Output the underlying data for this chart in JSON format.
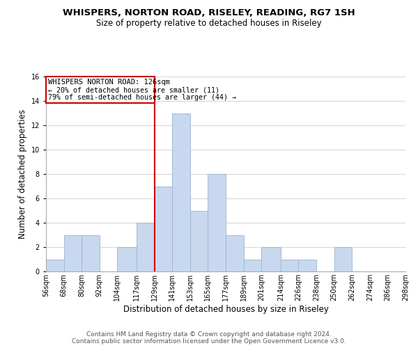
{
  "title": "WHISPERS, NORTON ROAD, RISELEY, READING, RG7 1SH",
  "subtitle": "Size of property relative to detached houses in Riseley",
  "xlabel": "Distribution of detached houses by size in Riseley",
  "ylabel": "Number of detached properties",
  "bar_edges": [
    56,
    68,
    80,
    92,
    104,
    117,
    129,
    141,
    153,
    165,
    177,
    189,
    201,
    214,
    226,
    238,
    250,
    262,
    274,
    286,
    298
  ],
  "bar_heights": [
    1,
    3,
    3,
    0,
    2,
    4,
    7,
    13,
    5,
    8,
    3,
    1,
    2,
    1,
    1,
    0,
    2,
    0,
    0,
    0
  ],
  "bar_color": "#c8d8ee",
  "bar_edgecolor": "#9ab4d4",
  "vline_x": 129,
  "vline_color": "#cc0000",
  "ylim": [
    0,
    16
  ],
  "yticks": [
    0,
    2,
    4,
    6,
    8,
    10,
    12,
    14,
    16
  ],
  "annotation_title": "WHISPERS NORTON ROAD: 126sqm",
  "annotation_line1": "← 20% of detached houses are smaller (11)",
  "annotation_line2": "79% of semi-detached houses are larger (44) →",
  "tick_labels": [
    "56sqm",
    "68sqm",
    "80sqm",
    "92sqm",
    "104sqm",
    "117sqm",
    "129sqm",
    "141sqm",
    "153sqm",
    "165sqm",
    "177sqm",
    "189sqm",
    "201sqm",
    "214sqm",
    "226sqm",
    "238sqm",
    "250sqm",
    "262sqm",
    "274sqm",
    "286sqm",
    "298sqm"
  ],
  "footnote1": "Contains HM Land Registry data © Crown copyright and database right 2024.",
  "footnote2": "Contains public sector information licensed under the Open Government Licence v3.0.",
  "background_color": "#ffffff",
  "grid_color": "#d8d8d8",
  "title_fontsize": 9.5,
  "subtitle_fontsize": 8.5,
  "xlabel_fontsize": 8.5,
  "ylabel_fontsize": 8.5,
  "tick_fontsize": 7.0,
  "annot_title_fontsize": 7.5,
  "annot_text_fontsize": 7.2,
  "footnote_fontsize": 6.5
}
